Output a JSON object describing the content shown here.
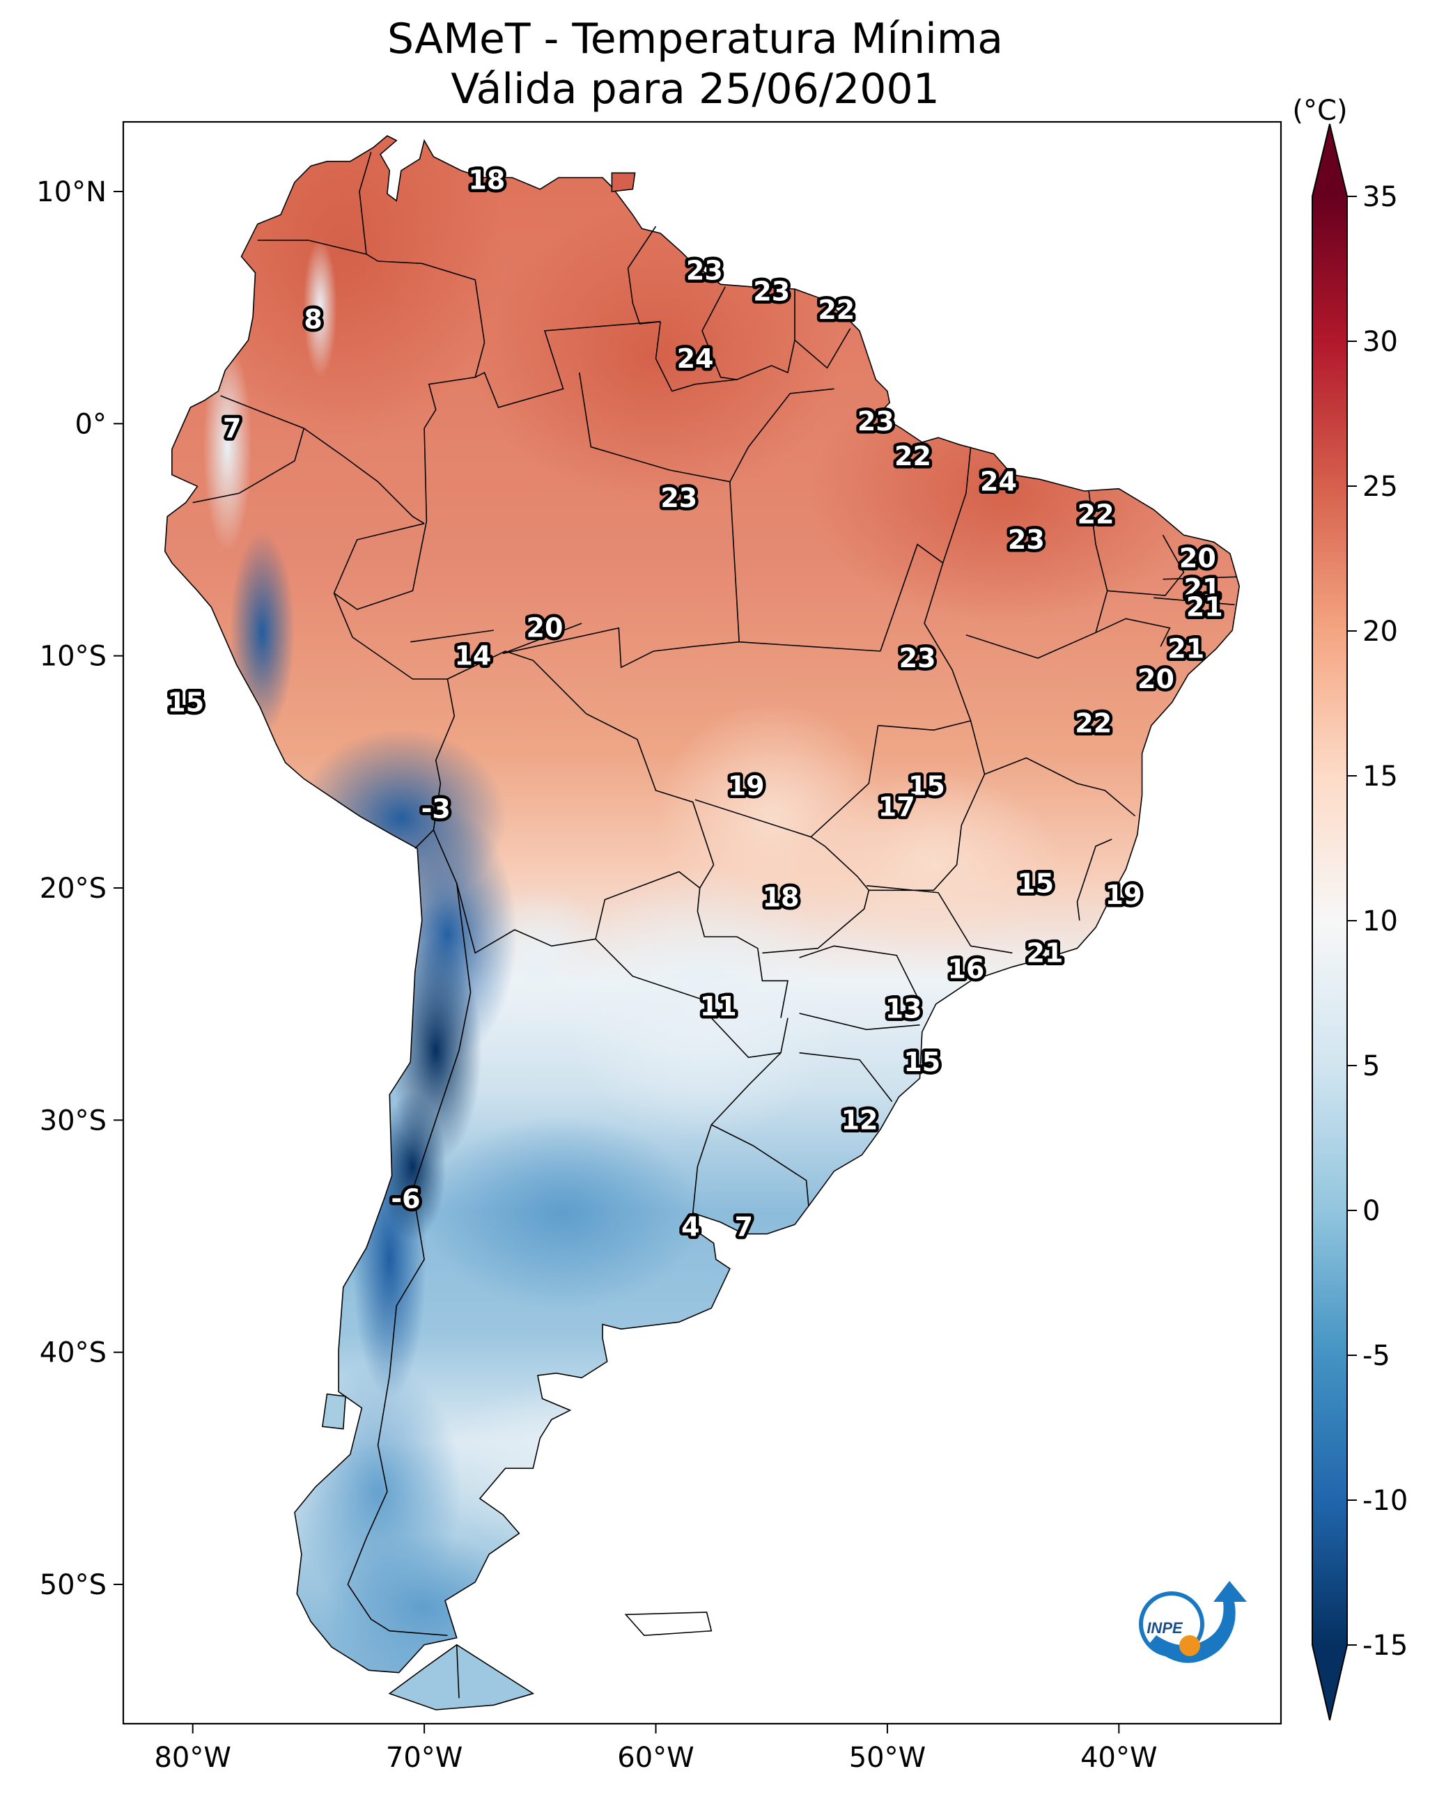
{
  "title": {
    "line1": "SAMeT - Temperatura Mínima",
    "line2": "Válida para 25/06/2001"
  },
  "colorbar": {
    "unit": "(°C)",
    "min": -15,
    "max": 35,
    "ticks": [
      "35",
      "30",
      "25",
      "20",
      "15",
      "10",
      "5",
      "0",
      "-5",
      "-10",
      "-15"
    ],
    "colors": [
      "#053061",
      "#2166ac",
      "#4393c3",
      "#92c5de",
      "#d1e5f0",
      "#f7f7f7",
      "#fddbc7",
      "#f4a582",
      "#d6604d",
      "#b2182b",
      "#67001f"
    ]
  },
  "axes": {
    "lon_ticks": [
      "80°W",
      "70°W",
      "60°W",
      "50°W",
      "40°W"
    ],
    "lat_ticks": [
      "10°N",
      "0°",
      "10°S",
      "20°S",
      "30°S",
      "40°S",
      "50°S"
    ]
  },
  "logo": {
    "text": "INPE"
  },
  "chart_data": {
    "type": "heatmap",
    "title": "SAMeT - Temperatura Mínima — Válida para 25/06/2001",
    "unit": "°C",
    "extent": {
      "lon": [
        -83,
        -33
      ],
      "lat": [
        -56,
        13
      ]
    },
    "labels": [
      {
        "lon": -67.3,
        "lat": 10.5,
        "value": 18
      },
      {
        "lon": -74.8,
        "lat": 4.5,
        "value": 8
      },
      {
        "lon": -78.3,
        "lat": -0.2,
        "value": 7
      },
      {
        "lon": -57.9,
        "lat": 6.6,
        "value": 23
      },
      {
        "lon": -55.0,
        "lat": 5.7,
        "value": 23
      },
      {
        "lon": -52.2,
        "lat": 4.9,
        "value": 22
      },
      {
        "lon": -58.3,
        "lat": 2.8,
        "value": 24
      },
      {
        "lon": -50.5,
        "lat": 0.1,
        "value": 23
      },
      {
        "lon": -48.9,
        "lat": -1.4,
        "value": 22
      },
      {
        "lon": -45.2,
        "lat": -2.5,
        "value": 24
      },
      {
        "lon": -59.0,
        "lat": -3.2,
        "value": 23
      },
      {
        "lon": -41.0,
        "lat": -3.9,
        "value": 22
      },
      {
        "lon": -44.0,
        "lat": -5.0,
        "value": 23
      },
      {
        "lon": -36.6,
        "lat": -5.8,
        "value": 20
      },
      {
        "lon": -36.4,
        "lat": -7.1,
        "value": 21
      },
      {
        "lon": -36.3,
        "lat": -7.9,
        "value": 21
      },
      {
        "lon": -37.1,
        "lat": -9.7,
        "value": 21
      },
      {
        "lon": -38.4,
        "lat": -11.0,
        "value": 20
      },
      {
        "lon": -64.8,
        "lat": -8.8,
        "value": 20
      },
      {
        "lon": -67.9,
        "lat": -10.0,
        "value": 14
      },
      {
        "lon": -48.7,
        "lat": -10.1,
        "value": 23
      },
      {
        "lon": -41.1,
        "lat": -12.9,
        "value": 22
      },
      {
        "lon": -80.3,
        "lat": -12.0,
        "value": 15
      },
      {
        "lon": -56.1,
        "lat": -15.6,
        "value": 19
      },
      {
        "lon": -48.3,
        "lat": -15.6,
        "value": 15
      },
      {
        "lon": -49.6,
        "lat": -16.5,
        "value": 17
      },
      {
        "lon": -69.5,
        "lat": -16.6,
        "value": -3
      },
      {
        "lon": -43.6,
        "lat": -19.8,
        "value": 15
      },
      {
        "lon": -39.8,
        "lat": -20.3,
        "value": 19
      },
      {
        "lon": -54.6,
        "lat": -20.4,
        "value": 18
      },
      {
        "lon": -43.2,
        "lat": -22.8,
        "value": 21
      },
      {
        "lon": -46.6,
        "lat": -23.5,
        "value": 16
      },
      {
        "lon": -57.3,
        "lat": -25.1,
        "value": 11
      },
      {
        "lon": -49.3,
        "lat": -25.2,
        "value": 13
      },
      {
        "lon": -48.5,
        "lat": -27.5,
        "value": 15
      },
      {
        "lon": -51.2,
        "lat": -30.0,
        "value": 12
      },
      {
        "lon": -70.8,
        "lat": -33.4,
        "value": -6
      },
      {
        "lon": -58.5,
        "lat": -34.6,
        "value": 4
      },
      {
        "lon": -56.2,
        "lat": -34.6,
        "value": 7
      }
    ]
  }
}
